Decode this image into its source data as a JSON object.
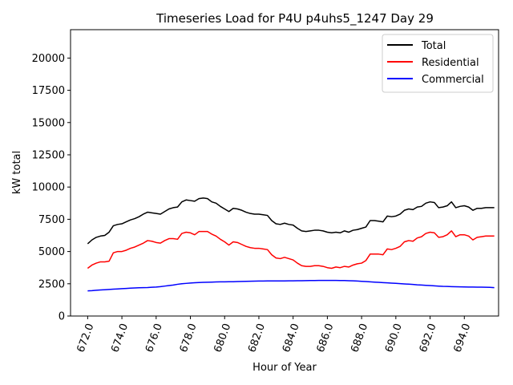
{
  "chart_data": {
    "type": "line",
    "title": "Timeseries Load for P4U p4uhs5_1247  Day 29",
    "xlabel": "Hour of Year",
    "ylabel": "kW total",
    "xlim": [
      671.0,
      696.0
    ],
    "ylim": [
      0,
      22200
    ],
    "xticks": [
      672.0,
      674.0,
      676.0,
      678.0,
      680.0,
      682.0,
      684.0,
      686.0,
      688.0,
      690.0,
      692.0,
      694.0
    ],
    "xtick_labels": [
      "672.0",
      "674.0",
      "676.0",
      "678.0",
      "680.0",
      "682.0",
      "684.0",
      "686.0",
      "688.0",
      "690.0",
      "692.0",
      "694.0"
    ],
    "yticks": [
      0,
      2500,
      5000,
      7500,
      10000,
      12500,
      15000,
      17500,
      20000
    ],
    "ytick_labels": [
      "0",
      "2500",
      "5000",
      "7500",
      "10000",
      "12500",
      "15000",
      "17500",
      "20000"
    ],
    "legend_position": "top-right",
    "x": [
      672.0,
      672.25,
      672.5,
      672.75,
      673.0,
      673.25,
      673.5,
      673.75,
      674.0,
      674.25,
      674.5,
      674.75,
      675.0,
      675.25,
      675.5,
      675.75,
      676.0,
      676.25,
      676.5,
      676.75,
      677.0,
      677.25,
      677.5,
      677.75,
      678.0,
      678.25,
      678.5,
      678.75,
      679.0,
      679.25,
      679.5,
      679.75,
      680.0,
      680.25,
      680.5,
      680.75,
      681.0,
      681.25,
      681.5,
      681.75,
      682.0,
      682.25,
      682.5,
      682.75,
      683.0,
      683.25,
      683.5,
      683.75,
      684.0,
      684.25,
      684.5,
      684.75,
      685.0,
      685.25,
      685.5,
      685.75,
      686.0,
      686.25,
      686.5,
      686.75,
      687.0,
      687.25,
      687.5,
      687.75,
      688.0,
      688.25,
      688.5,
      688.75,
      689.0,
      689.25,
      689.5,
      689.75,
      690.0,
      690.25,
      690.5,
      690.75,
      691.0,
      691.25,
      691.5,
      691.75,
      692.0,
      692.25,
      692.5,
      692.75,
      693.0,
      693.25,
      693.5,
      693.75,
      694.0,
      694.25,
      694.5,
      694.75,
      695.0,
      695.25,
      695.5,
      695.75
    ],
    "series": [
      {
        "name": "Total",
        "color": "#000000",
        "values": [
          5600,
          5900,
          6100,
          6200,
          6250,
          6500,
          7000,
          7100,
          7150,
          7300,
          7450,
          7550,
          7700,
          7900,
          8050,
          8000,
          7950,
          7900,
          8100,
          8300,
          8400,
          8450,
          8850,
          9000,
          8950,
          8900,
          9100,
          9150,
          9100,
          8850,
          8750,
          8500,
          8300,
          8100,
          8350,
          8300,
          8200,
          8050,
          7950,
          7900,
          7900,
          7850,
          7800,
          7400,
          7150,
          7100,
          7200,
          7100,
          7050,
          6800,
          6600,
          6550,
          6600,
          6650,
          6650,
          6600,
          6500,
          6450,
          6500,
          6450,
          6600,
          6500,
          6650,
          6700,
          6800,
          6900,
          7400,
          7400,
          7350,
          7300,
          7750,
          7700,
          7750,
          7900,
          8200,
          8300,
          8250,
          8450,
          8500,
          8750,
          8850,
          8800,
          8400,
          8450,
          8550,
          8850,
          8400,
          8500,
          8550,
          8450,
          8200,
          8350,
          8350,
          8400,
          8400,
          8400
        ]
      },
      {
        "name": "Residential",
        "color": "#ff0000",
        "values": [
          3700,
          3950,
          4100,
          4200,
          4200,
          4250,
          4900,
          5000,
          5000,
          5100,
          5250,
          5350,
          5500,
          5650,
          5850,
          5800,
          5700,
          5650,
          5850,
          6000,
          6000,
          5950,
          6400,
          6500,
          6450,
          6300,
          6550,
          6550,
          6550,
          6350,
          6200,
          5950,
          5750,
          5500,
          5750,
          5700,
          5550,
          5400,
          5300,
          5250,
          5250,
          5200,
          5150,
          4750,
          4500,
          4450,
          4550,
          4450,
          4350,
          4100,
          3900,
          3850,
          3850,
          3900,
          3900,
          3850,
          3750,
          3700,
          3800,
          3750,
          3850,
          3800,
          3950,
          4050,
          4100,
          4300,
          4800,
          4800,
          4800,
          4750,
          5200,
          5150,
          5250,
          5400,
          5750,
          5850,
          5800,
          6050,
          6150,
          6400,
          6500,
          6450,
          6100,
          6150,
          6300,
          6600,
          6150,
          6300,
          6300,
          6200,
          5900,
          6100,
          6150,
          6200,
          6200,
          6200
        ]
      },
      {
        "name": "Commercial",
        "color": "#0000ff",
        "values": [
          1950,
          1970,
          2000,
          2020,
          2040,
          2060,
          2080,
          2100,
          2120,
          2140,
          2160,
          2180,
          2190,
          2200,
          2210,
          2230,
          2250,
          2280,
          2320,
          2360,
          2400,
          2460,
          2500,
          2530,
          2560,
          2580,
          2600,
          2610,
          2620,
          2630,
          2640,
          2650,
          2650,
          2660,
          2660,
          2670,
          2680,
          2690,
          2700,
          2705,
          2710,
          2715,
          2720,
          2720,
          2720,
          2720,
          2720,
          2725,
          2730,
          2735,
          2740,
          2745,
          2750,
          2755,
          2760,
          2760,
          2760,
          2760,
          2760,
          2755,
          2750,
          2740,
          2730,
          2710,
          2690,
          2670,
          2650,
          2630,
          2610,
          2590,
          2570,
          2550,
          2530,
          2510,
          2490,
          2470,
          2450,
          2420,
          2400,
          2380,
          2360,
          2340,
          2320,
          2300,
          2290,
          2280,
          2270,
          2260,
          2255,
          2250,
          2245,
          2240,
          2235,
          2230,
          2225,
          2200
        ]
      }
    ]
  }
}
